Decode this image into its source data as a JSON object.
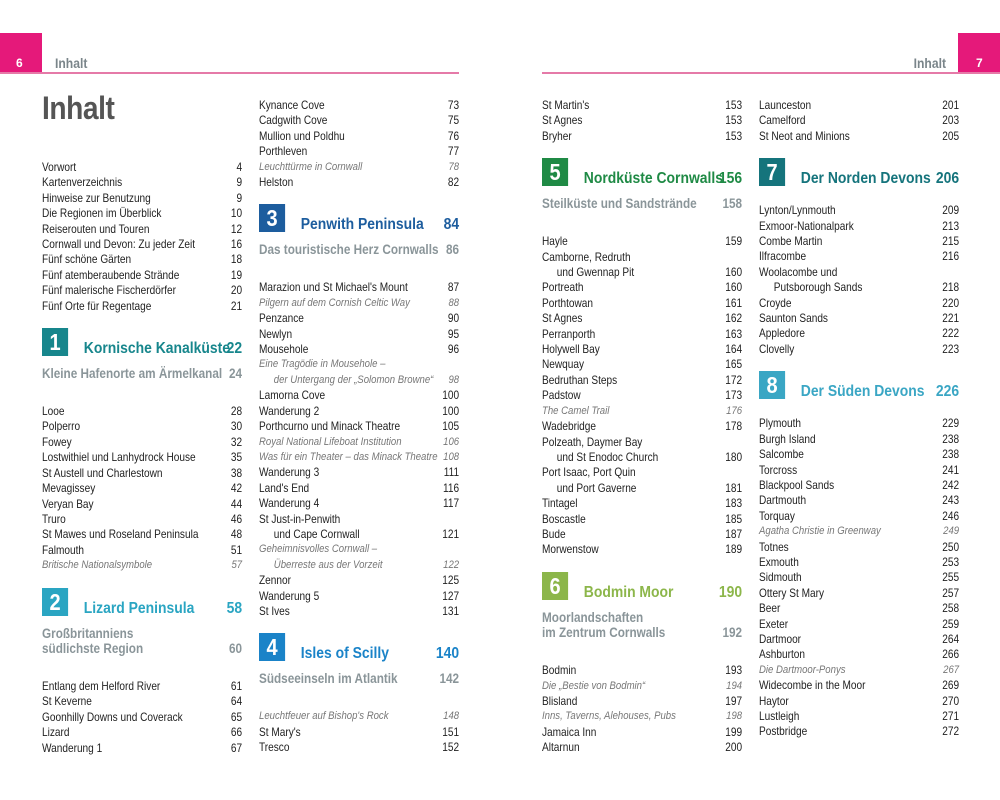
{
  "header": {
    "left_page_number": "6",
    "right_page_number": "7",
    "running_title_left": "Inhalt",
    "running_title_right": "Inhalt",
    "accent_color": "#e5197a"
  },
  "title": "Inhalt",
  "columns": [
    [
      {
        "t": "Vorwort",
        "p": "4"
      },
      {
        "t": "Kartenverzeichnis",
        "p": "9"
      },
      {
        "t": "Hinweise zur Benutzung",
        "p": "9"
      },
      {
        "t": "Die Regionen im Überblick",
        "p": "10"
      },
      {
        "t": "Reiserouten und Touren",
        "p": "12"
      },
      {
        "t": "Cornwall und Devon: Zu jeder Zeit",
        "p": "16"
      },
      {
        "t": "Fünf schöne Gärten",
        "p": "18"
      },
      {
        "t": "Fünf atemberaubende Strände",
        "p": "19"
      },
      {
        "t": "Fünf malerische Fischerdörfer",
        "p": "20"
      },
      {
        "t": "Fünf Orte für Regentage",
        "p": "21"
      },
      {
        "section": "1",
        "title": "Kornische Kanalküste",
        "page": "22",
        "color": "#17868c",
        "sub": [
          "Kleine Hafenorte am Ärmelkanal"
        ],
        "subpage": "24"
      },
      {
        "t": "Looe",
        "p": "28"
      },
      {
        "t": "Polperro",
        "p": "30"
      },
      {
        "t": "Fowey",
        "p": "32"
      },
      {
        "t": "Lostwithiel und Lanhydrock House",
        "p": "35"
      },
      {
        "t": "St Austell und Charlestown",
        "p": "38"
      },
      {
        "t": "Mevagissey",
        "p": "42"
      },
      {
        "t": "Veryan Bay",
        "p": "44"
      },
      {
        "t": "Truro",
        "p": "46"
      },
      {
        "t": "St Mawes und Roseland Peninsula",
        "p": "48"
      },
      {
        "t": "Falmouth",
        "p": "51"
      },
      {
        "t": "Britische Nationalsymbole",
        "p": "57",
        "i": true
      },
      {
        "section": "2",
        "title": "Lizard Peninsula",
        "page": "58",
        "color": "#2aa5c2",
        "sub": [
          "Großbritanniens",
          "südlichste Region"
        ],
        "subpage": "60"
      },
      {
        "t": "Entlang dem Helford River",
        "p": "61"
      },
      {
        "t": "St Keverne",
        "p": "64"
      },
      {
        "t": "Goonhilly Downs und Coverack",
        "p": "65"
      },
      {
        "t": "Lizard",
        "p": "66"
      },
      {
        "t": "Wanderung 1",
        "p": "67"
      }
    ],
    [
      {
        "t": "Kynance Cove",
        "p": "73"
      },
      {
        "t": "Cadgwith Cove",
        "p": "75"
      },
      {
        "t": "Mullion und Poldhu",
        "p": "76"
      },
      {
        "t": "Porthleven",
        "p": "77"
      },
      {
        "t": "Leuchttürme in Cornwall",
        "p": "78",
        "i": true
      },
      {
        "t": "Helston",
        "p": "82"
      },
      {
        "section": "3",
        "title": "Penwith Peninsula",
        "page": "84",
        "color": "#1d5d9e",
        "sub": [
          "Das touristische Herz Cornwalls"
        ],
        "subpage": "86"
      },
      {
        "t": "Marazion und St Michael's Mount",
        "p": "87"
      },
      {
        "t": "Pilgern auf dem Cornish Celtic Way",
        "p": "88",
        "i": true
      },
      {
        "t": "Penzance",
        "p": "90"
      },
      {
        "t": "Newlyn",
        "p": "95"
      },
      {
        "t": "Mousehole",
        "p": "96"
      },
      {
        "lines": [
          "Eine Tragödie in Mousehole –",
          "der Untergang der „Solomon Browne“"
        ],
        "p": "98",
        "i": true
      },
      {
        "t": "Lamorna Cove",
        "p": "100"
      },
      {
        "t": "Wanderung 2",
        "p": "100"
      },
      {
        "t": "Porthcurno und Minack Theatre",
        "p": "105"
      },
      {
        "t": "Royal National Lifeboat Institution",
        "p": "106",
        "i": true
      },
      {
        "t": "Was für ein Theater – das Minack Theatre",
        "p": "108",
        "i": true
      },
      {
        "t": "Wanderung 3",
        "p": "111"
      },
      {
        "t": "Land's End",
        "p": "116"
      },
      {
        "t": "Wanderung 4",
        "p": "117"
      },
      {
        "lines": [
          "St Just-in-Penwith",
          "und Cape Cornwall"
        ],
        "p": "121"
      },
      {
        "lines": [
          "Geheimnisvolles Cornwall –",
          "Überreste aus der Vorzeit"
        ],
        "p": "122",
        "i": true
      },
      {
        "t": "Zennor",
        "p": "125"
      },
      {
        "t": "Wanderung 5",
        "p": "127"
      },
      {
        "t": "St Ives",
        "p": "131"
      },
      {
        "section": "4",
        "title": "Isles of Scilly",
        "page": "140",
        "color": "#1a83c8",
        "sub": [
          "Südseeinseln im Atlantik"
        ],
        "subpage": "142"
      },
      {
        "t": "Leuchtfeuer auf Bishop's Rock",
        "p": "148",
        "i": true
      },
      {
        "t": "St Mary's",
        "p": "151"
      },
      {
        "t": "Tresco",
        "p": "152"
      }
    ],
    [
      {
        "t": "St Martin's",
        "p": "153"
      },
      {
        "t": "St Agnes",
        "p": "153"
      },
      {
        "t": "Bryher",
        "p": "153"
      },
      {
        "section": "5",
        "title": "Nordküste Cornwalls",
        "page": "156",
        "color": "#1f8a45",
        "sub": [
          "Steilküste und Sandstrände"
        ],
        "subpage": "158"
      },
      {
        "t": "Hayle",
        "p": "159"
      },
      {
        "lines": [
          "Camborne, Redruth",
          "und Gwennap Pit"
        ],
        "p": "160"
      },
      {
        "t": "Portreath",
        "p": "160"
      },
      {
        "t": "Porthtowan",
        "p": "161"
      },
      {
        "t": "St Agnes",
        "p": "162"
      },
      {
        "t": "Perranporth",
        "p": "163"
      },
      {
        "t": "Holywell Bay",
        "p": "164"
      },
      {
        "t": "Newquay",
        "p": "165"
      },
      {
        "t": "Bedruthan Steps",
        "p": "172"
      },
      {
        "t": "Padstow",
        "p": "173"
      },
      {
        "t": "The Camel Trail",
        "p": "176",
        "i": true
      },
      {
        "t": "Wadebridge",
        "p": "178"
      },
      {
        "lines": [
          "Polzeath, Daymer Bay",
          "und St Enodoc Church"
        ],
        "p": "180"
      },
      {
        "lines": [
          "Port Isaac, Port Quin",
          "und Port Gaverne"
        ],
        "p": "181"
      },
      {
        "t": "Tintagel",
        "p": "183"
      },
      {
        "t": "Boscastle",
        "p": "185"
      },
      {
        "t": "Bude",
        "p": "187"
      },
      {
        "t": "Morwenstow",
        "p": "189"
      },
      {
        "section": "6",
        "title": "Bodmin Moor",
        "page": "190",
        "color": "#8cb64a",
        "sub": [
          "Moorlandschaften",
          "im Zentrum Cornwalls"
        ],
        "subpage": "192"
      },
      {
        "t": "Bodmin",
        "p": "193"
      },
      {
        "t": "Die „Bestie von Bodmin“",
        "p": "194",
        "i": true
      },
      {
        "t": "Blisland",
        "p": "197"
      },
      {
        "t": "Inns, Taverns, Alehouses, Pubs",
        "p": "198",
        "i": true
      },
      {
        "t": "Jamaica Inn",
        "p": "199"
      },
      {
        "t": "Altarnun",
        "p": "200"
      }
    ],
    [
      {
        "t": "Launceston",
        "p": "201"
      },
      {
        "t": "Camelford",
        "p": "203"
      },
      {
        "t": "St Neot and Minions",
        "p": "205"
      },
      {
        "section": "7",
        "title": "Der Norden Devons",
        "page": "206",
        "color": "#15747c"
      },
      {
        "t": "Lynton/Lynmouth",
        "p": "209"
      },
      {
        "t": "Exmoor-Nationalpark",
        "p": "213"
      },
      {
        "t": "Combe Martin",
        "p": "215"
      },
      {
        "t": "Ilfracombe",
        "p": "216"
      },
      {
        "lines": [
          "Woolacombe und",
          "Putsborough Sands"
        ],
        "p": "218"
      },
      {
        "t": "Croyde",
        "p": "220"
      },
      {
        "t": "Saunton Sands",
        "p": "221"
      },
      {
        "t": "Appledore",
        "p": "222"
      },
      {
        "t": "Clovelly",
        "p": "223"
      },
      {
        "section": "8",
        "title": "Der Süden Devons",
        "page": "226",
        "color": "#3aa6c4"
      },
      {
        "t": "Plymouth",
        "p": "229"
      },
      {
        "t": "Burgh Island",
        "p": "238"
      },
      {
        "t": "Salcombe",
        "p": "238"
      },
      {
        "t": "Torcross",
        "p": "241"
      },
      {
        "t": "Blackpool Sands",
        "p": "242"
      },
      {
        "t": "Dartmouth",
        "p": "243"
      },
      {
        "t": "Torquay",
        "p": "246"
      },
      {
        "t": "Agatha Christie in Greenway",
        "p": "249",
        "i": true
      },
      {
        "t": "Totnes",
        "p": "250"
      },
      {
        "t": "Exmouth",
        "p": "253"
      },
      {
        "t": "Sidmouth",
        "p": "255"
      },
      {
        "t": "Ottery St Mary",
        "p": "257"
      },
      {
        "t": "Beer",
        "p": "258"
      },
      {
        "t": "Exeter",
        "p": "259"
      },
      {
        "t": "Dartmoor",
        "p": "264"
      },
      {
        "t": "Ashburton",
        "p": "266"
      },
      {
        "t": "Die Dartmoor-Ponys",
        "p": "267",
        "i": true
      },
      {
        "t": "Widecombe in the Moor",
        "p": "269"
      },
      {
        "t": "Haytor",
        "p": "270"
      },
      {
        "t": "Lustleigh",
        "p": "271"
      },
      {
        "t": "Postbridge",
        "p": "272"
      }
    ]
  ]
}
